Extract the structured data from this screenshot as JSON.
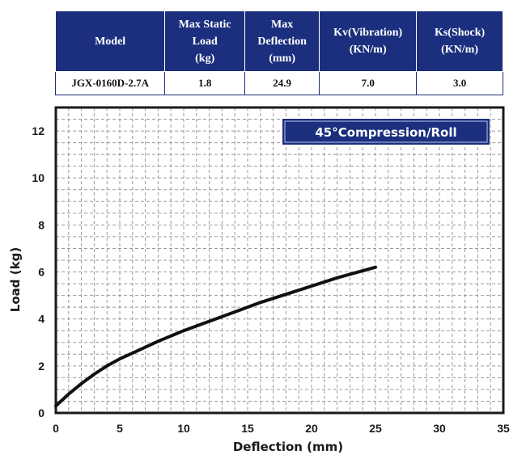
{
  "table": {
    "headers": [
      "Model",
      "Max Static\nLoad\n(kg)",
      "Max\nDeflection\n(mm)",
      "Kv(Vibration)\n(KN/m)",
      "Ks(Shock)\n(KN/m)"
    ],
    "row": [
      "JGX-0160D-2.7A",
      "1.8",
      "24.9",
      "7.0",
      "3.0"
    ]
  },
  "colors": {
    "header_bg": "#1b2f7e",
    "legend_bg": "#1b2f7e",
    "curve": "#111111",
    "grid": "#9a9a9a"
  },
  "chart_data": {
    "type": "line",
    "title": "",
    "legend_box": "45°Compression/Roll",
    "xlabel": "Deflection (mm)",
    "ylabel": "Load (kg)",
    "xlim": [
      0,
      35
    ],
    "ylim": [
      0,
      13
    ],
    "xticks": [
      0,
      5,
      10,
      15,
      20,
      25,
      30,
      35
    ],
    "yticks": [
      0,
      2,
      4,
      6,
      8,
      10,
      12
    ],
    "grid": true,
    "legend_position": "top-right",
    "series": [
      {
        "x": [
          0,
          0.5,
          1,
          2,
          3,
          4,
          5,
          6,
          8,
          10,
          12,
          14,
          16,
          18,
          20,
          22,
          24,
          25
        ],
        "y": [
          0.3,
          0.55,
          0.8,
          1.25,
          1.65,
          2.0,
          2.3,
          2.55,
          3.05,
          3.5,
          3.9,
          4.3,
          4.7,
          5.05,
          5.4,
          5.75,
          6.05,
          6.2
        ]
      }
    ]
  }
}
